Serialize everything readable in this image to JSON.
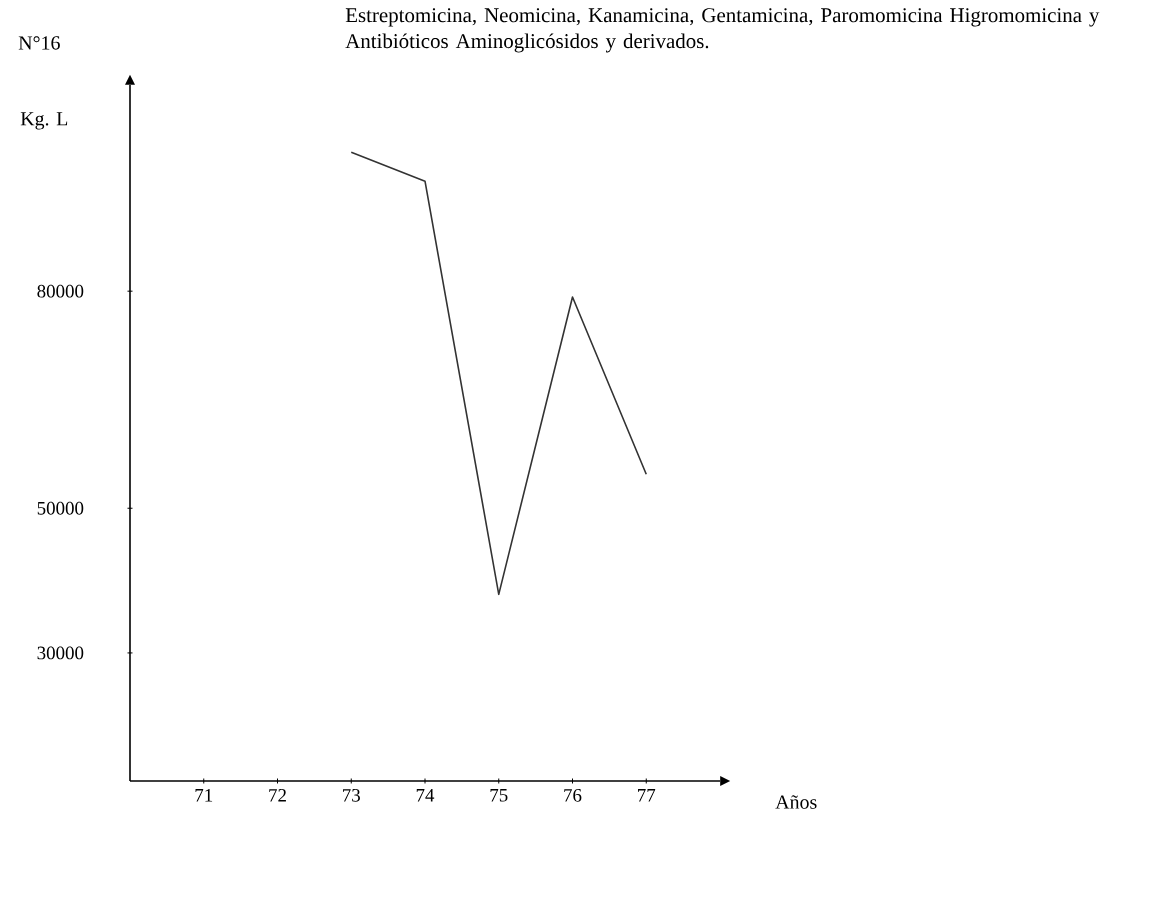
{
  "chart_data": {
    "type": "line",
    "title": "Estreptomicina, Neomicina, Kanamicina, Gentamicina, Paromomicina Higromomicina y Antibióticos Aminoglicósidos y derivados.",
    "ylabel": "Kg. L",
    "xlabel": "Años",
    "annotations": [
      "N°16"
    ],
    "x": [
      73,
      74,
      75,
      76,
      77
    ],
    "series": [
      {
        "color": "#333333",
        "values": [
          99200,
          95200,
          38100,
          79200,
          54700
        ]
      }
    ],
    "xlim": [
      70,
      78
    ],
    "xticks": [
      71,
      72,
      73,
      74,
      75,
      76,
      77
    ],
    "ylim": [
      12300,
      108500
    ],
    "yticks": [
      30000,
      50000,
      80000
    ]
  }
}
